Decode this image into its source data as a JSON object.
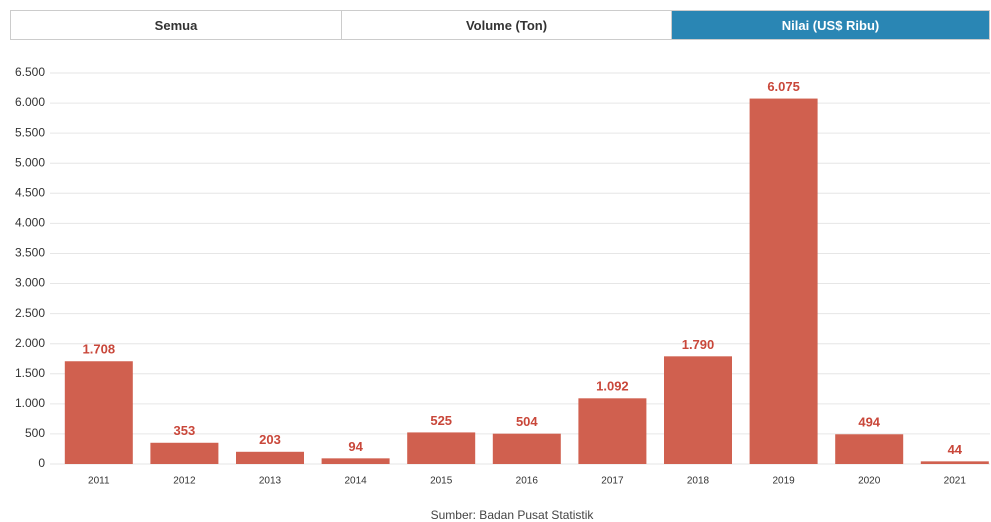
{
  "tabs": [
    "Semua",
    "Volume (Ton)",
    "Nilai (US$ Ribu)"
  ],
  "chart_data": {
    "type": "bar",
    "categories": [
      "2011",
      "2012",
      "2013",
      "2014",
      "2015",
      "2016",
      "2017",
      "2018",
      "2019",
      "2020",
      "2021"
    ],
    "values": [
      1708,
      353,
      203,
      94,
      525,
      504,
      1092,
      1790,
      6075,
      494,
      44
    ],
    "value_labels": [
      "1.708",
      "353",
      "203",
      "94",
      "525",
      "504",
      "1.092",
      "1.790",
      "6.075",
      "494",
      "44"
    ],
    "color": "#d0604f",
    "ylim": [
      0,
      6500
    ],
    "yticks": [
      0,
      500,
      {
        "value": 1000,
        "label": "1.000"
      },
      {
        "value": 1500,
        "label": "1.500"
      },
      {
        "value": 2000,
        "label": "2.000"
      },
      {
        "value": 2500,
        "label": "2.500"
      },
      {
        "value": 3000,
        "label": "3.000"
      },
      {
        "value": 3500,
        "label": "3.500"
      },
      {
        "value": 4000,
        "label": "4.000"
      },
      {
        "value": 4500,
        "label": "4.500"
      },
      {
        "value": 5000,
        "label": "5.000"
      },
      {
        "value": 5500,
        "label": "5.500"
      },
      {
        "value": 6000,
        "label": "6.000"
      },
      {
        "value": 6500,
        "label": "6.500"
      }
    ],
    "grid": true,
    "source": "Sumber: Badan Pusat Statistik"
  }
}
